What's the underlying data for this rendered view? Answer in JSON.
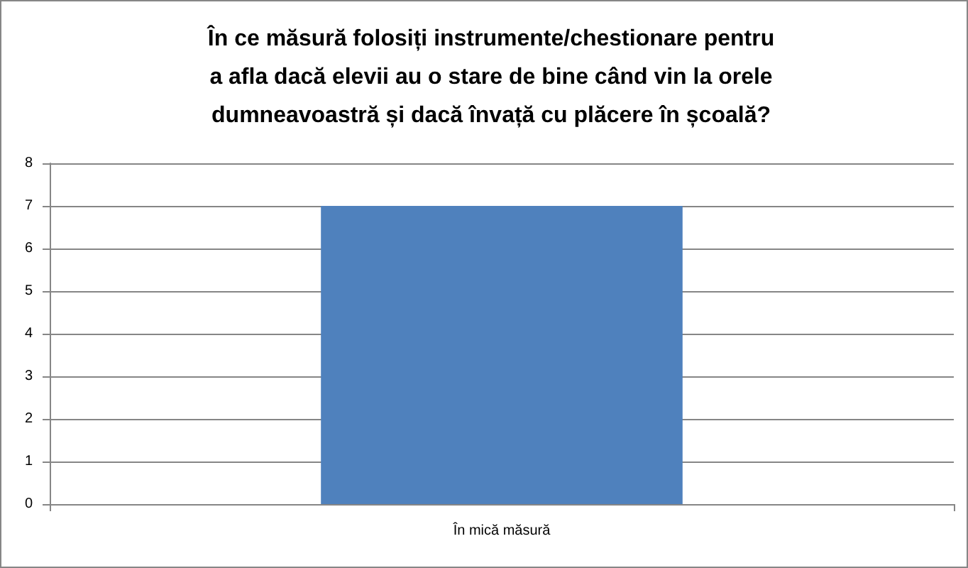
{
  "chart_data": {
    "type": "bar",
    "title": "În ce măsură folosiți instrumente/chestionare pentru a afla dacă elevii au o stare de bine când vin la orele dumneavoastră și dacă învață cu plăcere în școală?",
    "categories": [
      "În mică măsură"
    ],
    "values": [
      7
    ],
    "color": "#4f81bd",
    "ylim": [
      0,
      8
    ],
    "yticks": [
      0,
      1,
      2,
      3,
      4,
      5,
      6,
      7,
      8
    ],
    "grid": "y"
  }
}
